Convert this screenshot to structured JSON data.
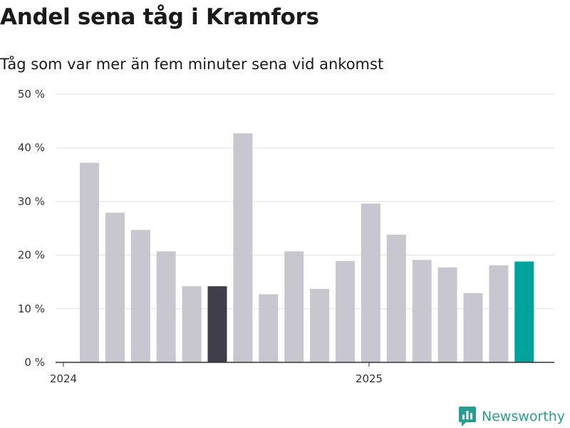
{
  "header": {
    "title": "Andel sena tåg i Kramfors",
    "subtitle": "Tåg som var mer än fem minuter sena vid ankomst"
  },
  "brand": {
    "name": "Newsworthy",
    "color": "#2a9d93",
    "icon": "bar-chart-speech-bubble-icon"
  },
  "chart_data": {
    "type": "bar",
    "title": "Andel sena tåg i Kramfors",
    "subtitle": "Tåg som var mer än fem minuter sena vid ankomst",
    "xlabel": "",
    "ylabel": "",
    "ylim": [
      0,
      50
    ],
    "y_ticks": [
      0,
      10,
      20,
      30,
      40,
      50
    ],
    "y_tick_labels": [
      "0 %",
      "10 %",
      "20 %",
      "30 %",
      "40 %",
      "50 %"
    ],
    "x_tick_labels": [
      {
        "label": "2024",
        "index": 0
      },
      {
        "label": "2025",
        "index": 12
      }
    ],
    "grid": true,
    "legend": "none",
    "categories": [
      "2024-01",
      "2024-02",
      "2024-03",
      "2024-04",
      "2024-05",
      "2024-06",
      "2024-07",
      "2024-08",
      "2024-09",
      "2024-10",
      "2024-11",
      "2024-12",
      "2025-01",
      "2025-02",
      "2025-03",
      "2025-04",
      "2025-05",
      "2025-06"
    ],
    "values": [
      37.2,
      27.9,
      24.7,
      20.7,
      14.2,
      14.2,
      42.7,
      12.7,
      20.7,
      13.7,
      18.9,
      29.6,
      23.8,
      19.1,
      17.7,
      12.9,
      18.1,
      18.8
    ],
    "colors": {
      "default": "#c8c7cf",
      "highlight_dark": "#3f3e4a",
      "highlight_latest": "#00a39a"
    },
    "highlight_dark_index": 5,
    "highlight_latest_index": 17
  }
}
